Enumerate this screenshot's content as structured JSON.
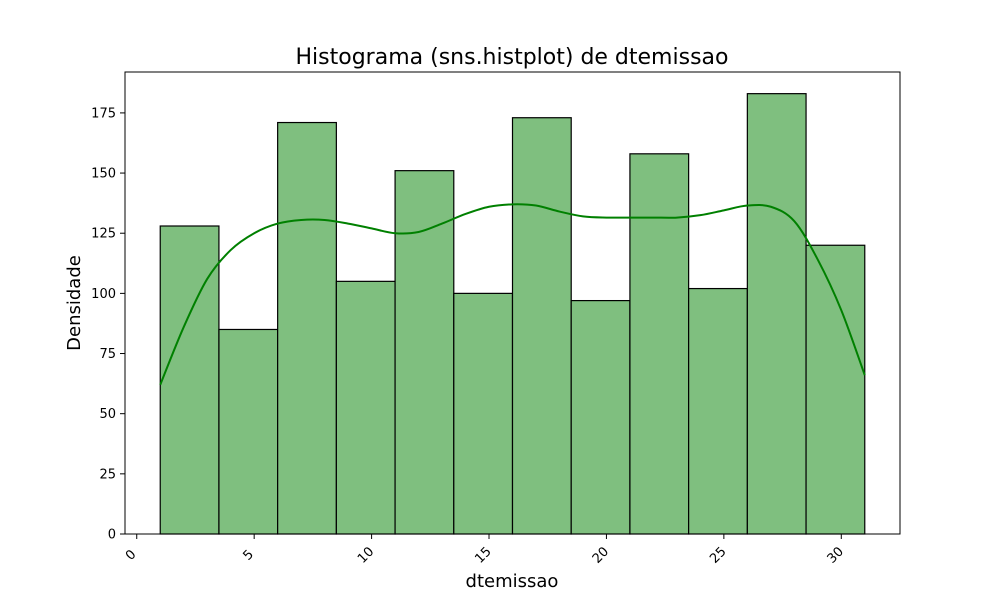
{
  "chart_data": {
    "type": "bar",
    "title": "Histograma (sns.histplot) de dtemissao",
    "xlabel": "dtemissao",
    "ylabel": "Densidade",
    "xlim": [
      -0.5,
      32.5
    ],
    "ylim": [
      0,
      192
    ],
    "x_ticks": [
      0,
      5,
      10,
      15,
      20,
      25,
      30
    ],
    "x_tick_labels": [
      "0",
      "5",
      "10",
      "15",
      "20",
      "25",
      "30"
    ],
    "y_ticks": [
      0,
      25,
      50,
      75,
      100,
      125,
      150,
      175
    ],
    "y_tick_labels": [
      "0",
      "25",
      "50",
      "75",
      "100",
      "125",
      "150",
      "175"
    ],
    "grid": false,
    "legend": "none",
    "bar_color": "#7fbf7f",
    "bar_edge_color": "#000000",
    "kde_color": "#008000",
    "bins": [
      {
        "x0": 1.0,
        "x1": 3.5,
        "count": 128
      },
      {
        "x0": 3.5,
        "x1": 6.0,
        "count": 85
      },
      {
        "x0": 6.0,
        "x1": 8.5,
        "count": 171
      },
      {
        "x0": 8.5,
        "x1": 11.0,
        "count": 105
      },
      {
        "x0": 11.0,
        "x1": 13.5,
        "count": 151
      },
      {
        "x0": 13.5,
        "x1": 16.0,
        "count": 100
      },
      {
        "x0": 16.0,
        "x1": 18.5,
        "count": 173
      },
      {
        "x0": 18.5,
        "x1": 21.0,
        "count": 97
      },
      {
        "x0": 21.0,
        "x1": 23.5,
        "count": 158
      },
      {
        "x0": 23.5,
        "x1": 26.0,
        "count": 102
      },
      {
        "x0": 26.0,
        "x1": 28.5,
        "count": 183
      },
      {
        "x0": 28.5,
        "x1": 31.0,
        "count": 120
      }
    ],
    "kde": {
      "x": [
        1,
        2,
        3,
        4,
        5,
        6,
        7,
        8,
        9,
        10,
        11,
        12,
        13,
        14,
        15,
        16,
        17,
        18,
        19,
        20,
        21,
        22,
        23,
        24,
        25,
        26,
        27,
        28,
        29,
        30,
        31
      ],
      "y": [
        62,
        86,
        106,
        118,
        125,
        129,
        130.5,
        130.5,
        129,
        127,
        125,
        125.5,
        129,
        133,
        136,
        137,
        136.5,
        134,
        132,
        131.5,
        131.5,
        131.5,
        131.5,
        132.5,
        134.5,
        136.5,
        136,
        130,
        114,
        93,
        66
      ]
    }
  }
}
